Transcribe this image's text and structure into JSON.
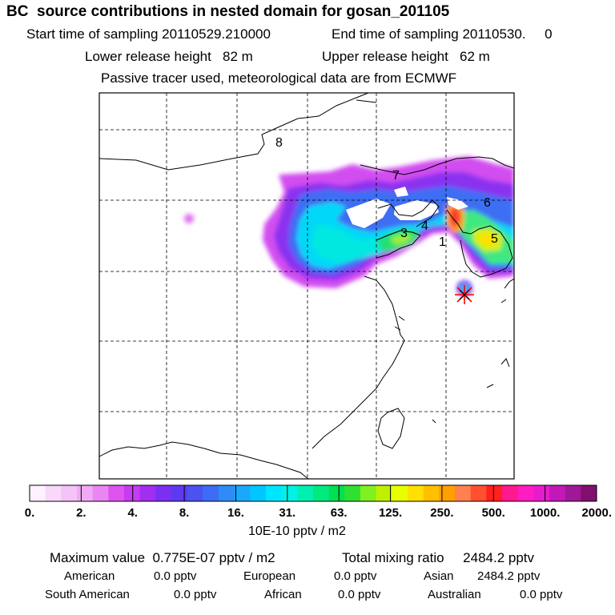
{
  "header": {
    "title": "BC  source contributions in nested domain for gosan_201105",
    "start_label": "Start time of sampling 20110529.210000",
    "end_label": "End time of sampling 20110530.     0",
    "lower_label": "Lower release height   82 m",
    "upper_label": "Upper release height   62 m",
    "tracer_note": "Passive tracer used, meteorological data are from ECMWF"
  },
  "map": {
    "source_labels": [
      "1",
      "3",
      "4",
      "5",
      "6",
      "7",
      "8"
    ],
    "colors": {
      "frame": "#000000",
      "grid": "#000000",
      "receptor": "#ff0000"
    }
  },
  "colorbar": {
    "tick_labels": [
      "0.",
      "2.",
      "4.",
      "8.",
      "16.",
      "31.",
      "63.",
      "125.",
      "250.",
      "500.",
      "1000.",
      "2000."
    ],
    "unit_label": "10E-10 pptv / m2",
    "colors": [
      "#fdf2fd",
      "#f9d8fb",
      "#f4c3f8",
      "#f0aaf5",
      "#ea86f1",
      "#df53f0",
      "#c63cf0",
      "#a22ef0",
      "#7a30f0",
      "#5d3af0",
      "#4a52f2",
      "#3c6df4",
      "#2f8bf7",
      "#1ba8fb",
      "#00c6ff",
      "#00e5ff",
      "#00f2e6",
      "#00f0b0",
      "#00ea80",
      "#00e050",
      "#30e030",
      "#80f020",
      "#c0f000",
      "#e8ff00",
      "#ffe000",
      "#ffc000",
      "#ffa000",
      "#ff8050",
      "#ff5030",
      "#ff2020",
      "#ff1890",
      "#ff1cc0",
      "#e61ccc",
      "#c318b8",
      "#a01896",
      "#80106c"
    ]
  },
  "footer": {
    "max_value": "Maximum value  0.775E-07 pptv / m2",
    "total_mixing": "Total mixing ratio     2484.2 pptv",
    "american": "American",
    "american_val": "0.0 pptv",
    "european": "European",
    "european_val": "0.0 pptv",
    "asian": "Asian",
    "asian_val": "2484.2 pptv",
    "south_american": "South American",
    "south_american_val": "0.0 pptv",
    "african": "African",
    "african_val": "0.0 pptv",
    "australian": "Australian",
    "australian_val": "0.0 pptv"
  }
}
